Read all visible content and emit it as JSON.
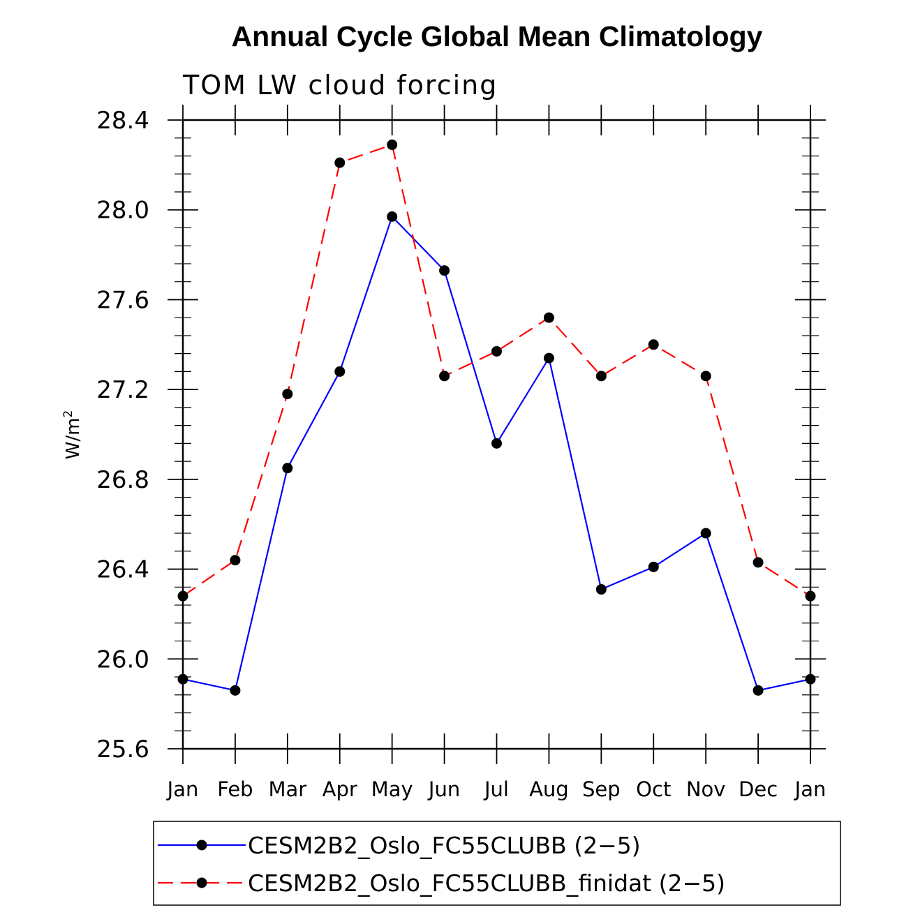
{
  "chart_data": {
    "type": "line",
    "title": "Annual Cycle Global Mean Climatology",
    "subtitle": "TOM LW cloud forcing",
    "xlabel": "",
    "ylabel": "W/m",
    "ylabel_superscript": "2",
    "ylim": [
      25.6,
      28.4
    ],
    "y_ticks": [
      "25.6",
      "26.0",
      "26.4",
      "26.8",
      "27.2",
      "27.6",
      "28.0",
      "28.4"
    ],
    "categories": [
      "Jan",
      "Feb",
      "Mar",
      "Apr",
      "May",
      "Jun",
      "Jul",
      "Aug",
      "Sep",
      "Oct",
      "Nov",
      "Dec",
      "Jan"
    ],
    "series": [
      {
        "name": "CESM2B2_Oslo_FC55CLUBB (2−5)",
        "color": "#0000ff",
        "dash": "solid",
        "values": [
          25.91,
          25.86,
          26.85,
          27.28,
          27.97,
          27.73,
          26.96,
          27.34,
          26.31,
          26.41,
          26.56,
          25.86,
          25.91
        ]
      },
      {
        "name": "CESM2B2_Oslo_FC55CLUBB_finidat (2−5)",
        "color": "#ff0000",
        "dash": "dashed",
        "values": [
          26.28,
          26.44,
          27.18,
          28.21,
          28.29,
          27.26,
          27.37,
          27.52,
          27.26,
          27.4,
          27.26,
          26.43,
          26.28
        ]
      }
    ],
    "marker_color": "#000000",
    "legend_position": "bottom"
  }
}
